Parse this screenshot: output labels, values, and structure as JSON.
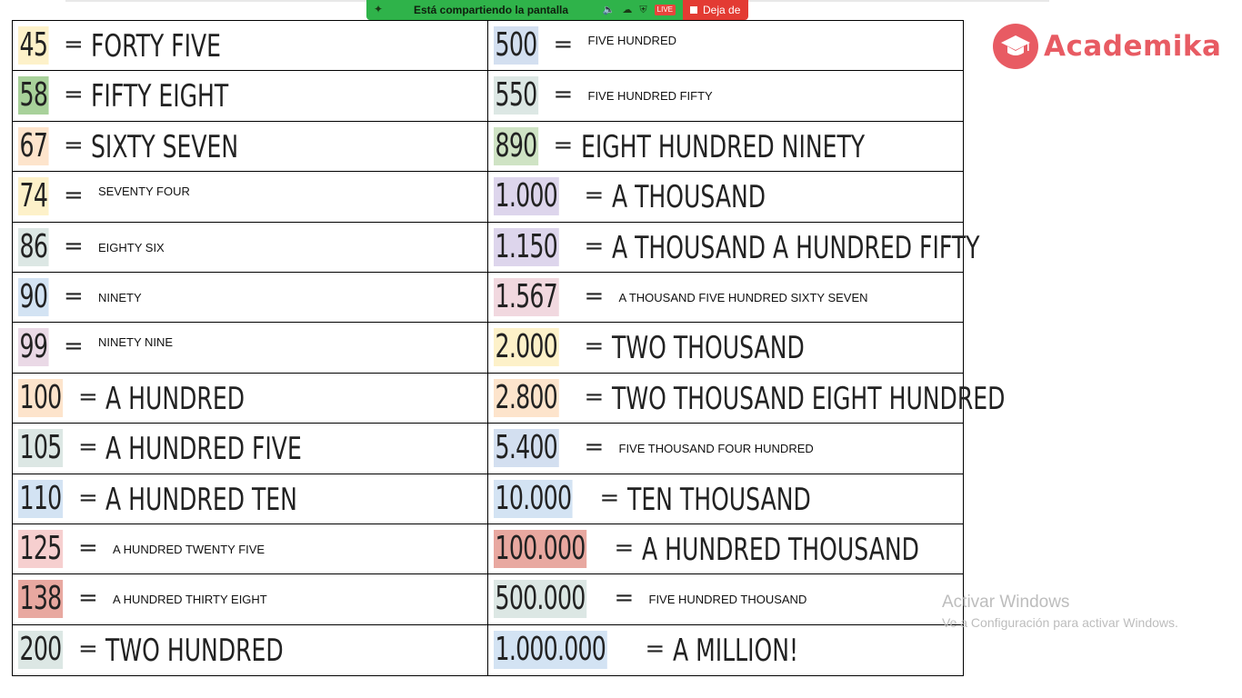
{
  "share_bar": {
    "label": "Está compartiendo la pantalla",
    "live_badge": "LIVE",
    "stop_label": "Deja de"
  },
  "logo": {
    "text": "Academika"
  },
  "watermark": {
    "title": "Activar Windows",
    "subtitle": "Ve a Configuración para activar Windows."
  },
  "colors": {
    "brand": "#e85b63",
    "share_green": "#2fb34a",
    "share_red": "#e33b33"
  },
  "rows": [
    {
      "left": {
        "num": "45",
        "text": "FORTY FIVE",
        "style": "big",
        "hl": "#fdf1c9"
      },
      "right": {
        "num": "500",
        "text": "FIVE HUNDRED",
        "style": "small",
        "hl": "#d3dff0"
      }
    },
    {
      "left": {
        "num": "58",
        "text": "FIFTY EIGHT",
        "style": "big",
        "hl": "#a8d19a"
      },
      "right": {
        "num": "550",
        "text": "FIVE HUNDRED FIFTY",
        "style": "small",
        "hl": "#dce7e4"
      }
    },
    {
      "left": {
        "num": "67",
        "text": "SIXTY SEVEN",
        "style": "big",
        "hl": "#fde4cc"
      },
      "right": {
        "num": "890",
        "text": "EIGHT HUNDRED NINETY",
        "style": "big",
        "hl": "#cfe3c4"
      }
    },
    {
      "left": {
        "num": "74",
        "text": "SEVENTY FOUR",
        "style": "small",
        "hl": "#fdf1c9"
      },
      "right": {
        "num": "1.000",
        "text": "A THOUSAND",
        "style": "big",
        "hl": "#ddd5ec"
      }
    },
    {
      "left": {
        "num": "86",
        "text": "EIGHTY SIX",
        "style": "small",
        "hl": "#dce7e4"
      },
      "right": {
        "num": "1.150",
        "text": "A THOUSAND A HUNDRED FIFTY",
        "style": "big",
        "hl": "#ddd5ec"
      }
    },
    {
      "left": {
        "num": "90",
        "text": "NINETY",
        "style": "small",
        "hl": "#d3e3f3"
      },
      "right": {
        "num": "1.567",
        "text": "A THOUSAND FIVE HUNDRED SIXTY SEVEN",
        "style": "small",
        "hl": "#f1d8df"
      }
    },
    {
      "left": {
        "num": "99",
        "text": "NINETY NINE",
        "style": "small",
        "hl": "#ead9e6"
      },
      "right": {
        "num": "2.000",
        "text": "TWO THOUSAND",
        "style": "big",
        "hl": "#fdf1c9"
      }
    },
    {
      "left": {
        "num": "100",
        "text": "A HUNDRED",
        "style": "big",
        "hl": "#fde4cc"
      },
      "right": {
        "num": "2.800",
        "text": "TWO THOUSAND EIGHT HUNDRED",
        "style": "big",
        "hl": "#fde4cc"
      }
    },
    {
      "left": {
        "num": "105",
        "text": "A HUNDRED FIVE",
        "style": "big",
        "hl": "#dce7e4"
      },
      "right": {
        "num": "5.400",
        "text": "FIVE THOUSAND FOUR HUNDRED",
        "style": "small",
        "hl": "#d3dff0"
      }
    },
    {
      "left": {
        "num": "110",
        "text": "A HUNDRED TEN",
        "style": "big",
        "hl": "#d3e3f3"
      },
      "right": {
        "num": "10.000",
        "text": "TEN THOUSAND",
        "style": "big",
        "hl": "#d3e3f3"
      }
    },
    {
      "left": {
        "num": "125",
        "text": "A HUNDRED TWENTY FIVE",
        "style": "small",
        "hl": "#f6cfcf"
      },
      "right": {
        "num": "100.000",
        "text": "A HUNDRED THOUSAND",
        "style": "big",
        "hl": "#e8a8a0"
      }
    },
    {
      "left": {
        "num": "138",
        "text": "A HUNDRED THIRTY EIGHT",
        "style": "small",
        "hl": "#e8a8a0"
      },
      "right": {
        "num": "500.000",
        "text": "FIVE HUNDRED THOUSAND",
        "style": "small",
        "hl": "#dce7e4"
      }
    },
    {
      "left": {
        "num": "200",
        "text": "TWO HUNDRED",
        "style": "big",
        "hl": "#dce7e4"
      },
      "right": {
        "num": "1.000.000",
        "text": "A MILLION!",
        "style": "big",
        "hl": "#d3e3f3"
      }
    }
  ]
}
